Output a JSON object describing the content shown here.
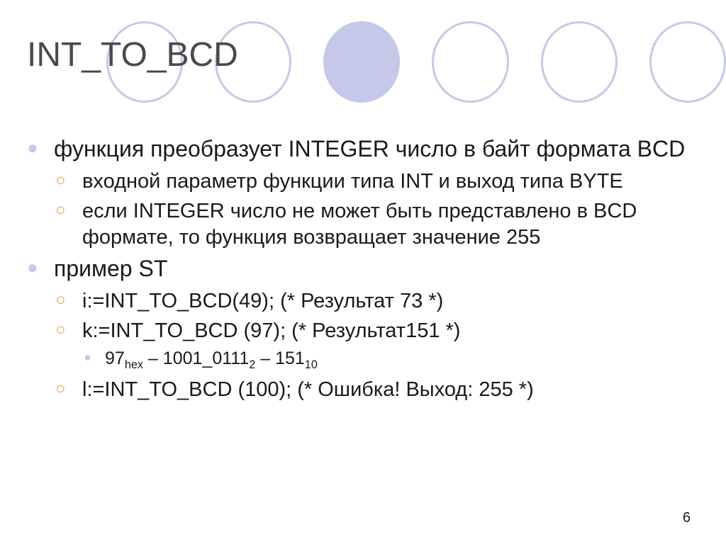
{
  "title": "INT_TO_BCD",
  "bullets": {
    "b1": "функция преобразует INTEGER число в байт формата BCD",
    "b1_1": "входной параметр функции типа  INT и выход типа BYTE",
    "b1_2": "если INTEGER число не может быть представлено в BCD формате, то функция возвращает значение 255",
    "b2": "пример ST",
    "b2_1": "i:=INT_TO_BCD(49); (* Результат 73 *)",
    "b2_2": "k:=INT_TO_BCD (97); (* Результат151 *)",
    "b2_2_1_a": "97",
    "b2_2_1_sub1": "hex",
    "b2_2_1_b": " – 1001_0111",
    "b2_2_1_sub2": "2",
    "b2_2_1_c": " – 151",
    "b2_2_1_sub3": "10",
    "b2_3": "l:=INT_TO_BCD (100); (* Ошибка! Выход: 255 *)"
  },
  "pagenum": "6",
  "circles": {
    "filled_index": 2,
    "count": 6
  },
  "colors": {
    "circle_stroke": "#c5c8e8",
    "circle_fill": "#c5c8e8",
    "bullet1_color": "#c5c8e8",
    "bullet2_color": "#d4a84a",
    "bullet3_color": "#c5c8e8",
    "text_color": "#1a1a1a",
    "title_color": "#4a4a4a",
    "background": "#ffffff"
  },
  "typography": {
    "title_fontsize": 48,
    "bullet1_fontsize": 32,
    "bullet2_fontsize": 29,
    "bullet3_fontsize": 25,
    "font_family": "Arial"
  }
}
